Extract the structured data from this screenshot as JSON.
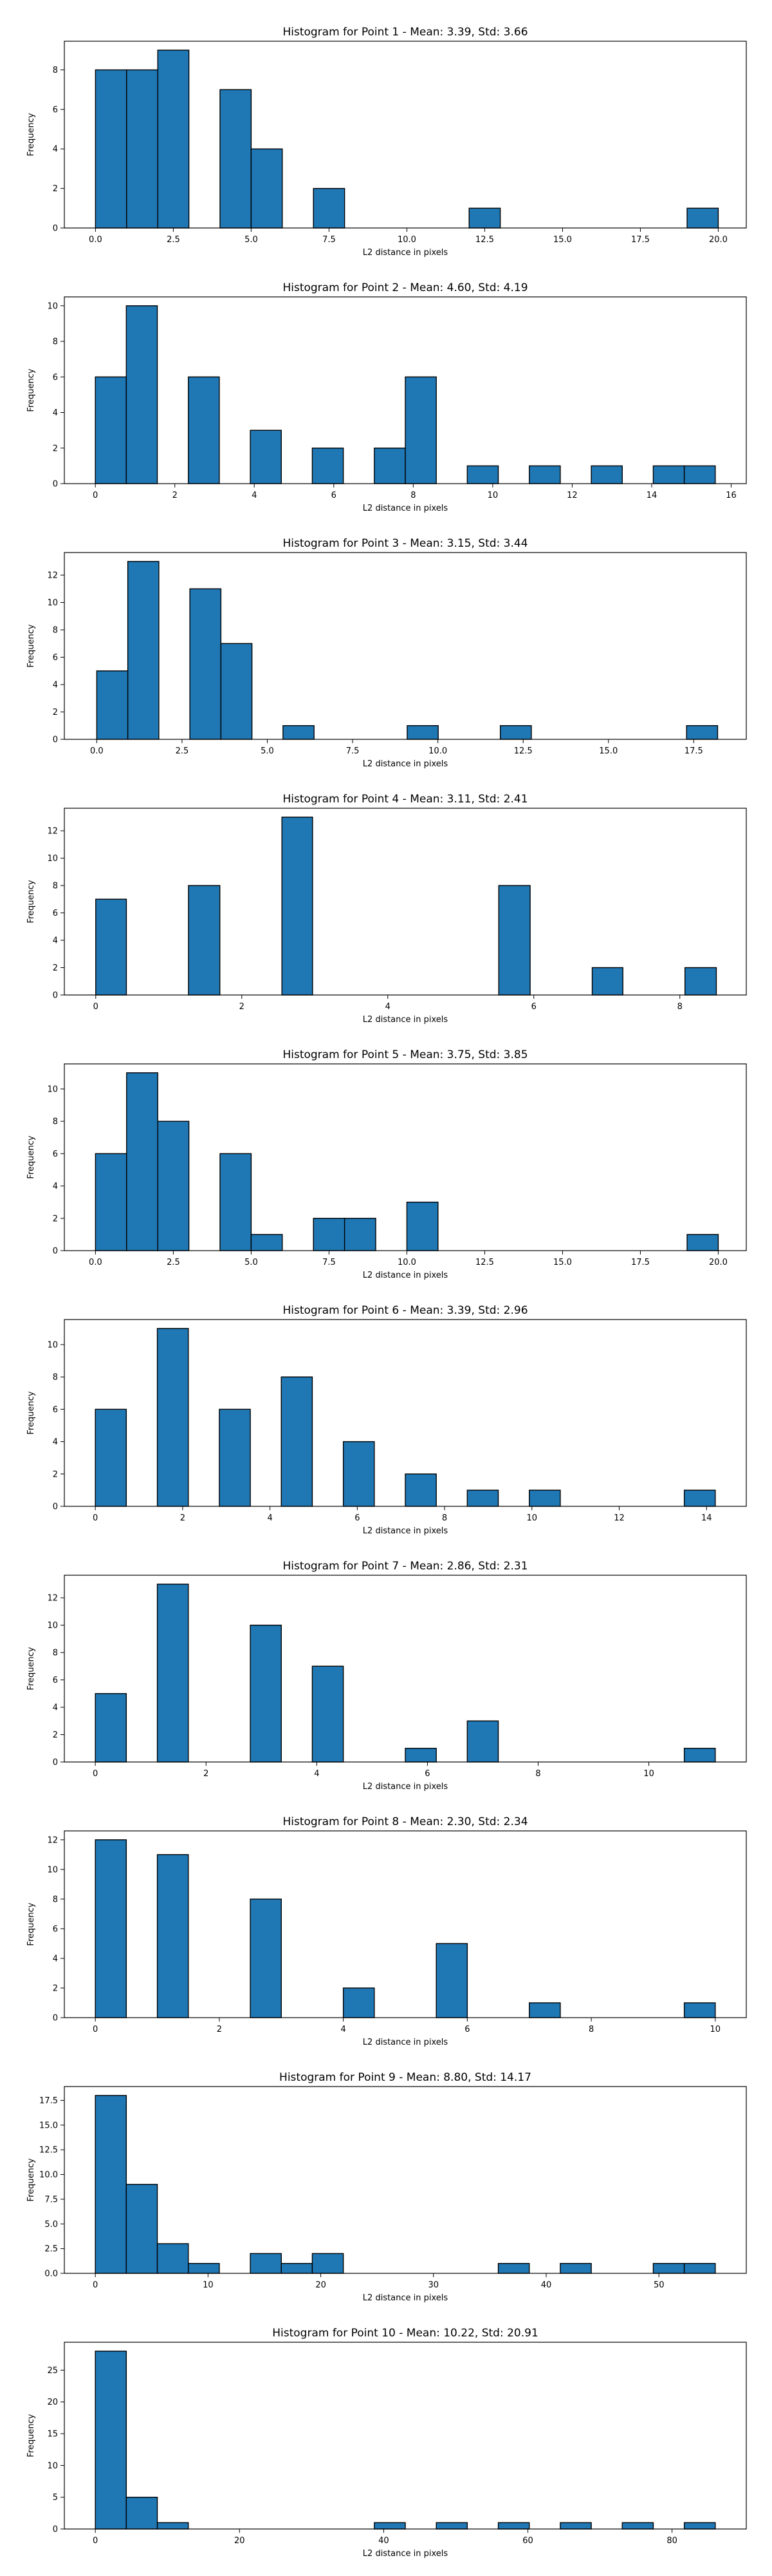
{
  "colors": {
    "bar_fill": "#1f77b4",
    "bar_edge": "#000000",
    "axis": "#000000",
    "background": "#ffffff"
  },
  "chart_data": [
    {
      "type": "bar",
      "title": "Histogram for Point 1 - Mean: 3.39, Std: 3.66",
      "xlabel": "L2 distance in pixels",
      "ylabel": "Frequency",
      "xlim": [
        -1.0,
        20.9
      ],
      "ylim": [
        0,
        9.45
      ],
      "xticks": [
        0,
        2.5,
        5,
        7.5,
        10,
        12.5,
        15,
        17.5,
        20
      ],
      "xtick_labels": [
        "0.0",
        "2.5",
        "5.0",
        "7.5",
        "10.0",
        "12.5",
        "15.0",
        "17.5",
        "20.0"
      ],
      "yticks": [
        0,
        2,
        4,
        6,
        8
      ],
      "ytick_labels": [
        "0",
        "2",
        "4",
        "6",
        "8"
      ],
      "grid": false,
      "bin_edges": [
        0,
        1,
        2,
        3,
        4,
        5,
        6,
        7,
        8,
        9,
        10,
        11,
        12,
        13,
        14,
        15,
        16,
        17,
        18,
        19,
        20
      ],
      "values": [
        8,
        8,
        9,
        0,
        7,
        4,
        0,
        2,
        0,
        0,
        0,
        0,
        1,
        0,
        0,
        0,
        0,
        0,
        0,
        1
      ]
    },
    {
      "type": "bar",
      "title": "Histogram for Point 2 - Mean: 4.60, Std: 4.19",
      "xlabel": "L2 distance in pixels",
      "ylabel": "Frequency",
      "xlim": [
        -0.78,
        16.38
      ],
      "ylim": [
        0,
        10.5
      ],
      "xticks": [
        0,
        2,
        4,
        6,
        8,
        10,
        12,
        14,
        16
      ],
      "xtick_labels": [
        "0",
        "2",
        "4",
        "6",
        "8",
        "10",
        "12",
        "14",
        "16"
      ],
      "yticks": [
        0,
        2,
        4,
        6,
        8,
        10
      ],
      "ytick_labels": [
        "0",
        "2",
        "4",
        "6",
        "8",
        "10"
      ],
      "grid": false,
      "bin_edges": [
        0,
        0.78,
        1.56,
        2.34,
        3.12,
        3.9,
        4.68,
        5.46,
        6.24,
        7.02,
        7.8,
        8.58,
        9.36,
        10.14,
        10.92,
        11.7,
        12.48,
        13.26,
        14.04,
        14.82,
        15.6
      ],
      "values": [
        6,
        10,
        0,
        6,
        0,
        3,
        0,
        2,
        0,
        2,
        6,
        0,
        1,
        0,
        1,
        0,
        1,
        0,
        1,
        1
      ]
    },
    {
      "type": "bar",
      "title": "Histogram for Point 3 - Mean: 3.15, Std: 3.44",
      "xlabel": "L2 distance in pixels",
      "ylabel": "Frequency",
      "xlim": [
        -0.95,
        19.04
      ],
      "ylim": [
        0,
        13.65
      ],
      "xticks": [
        0,
        2.5,
        5,
        7.5,
        10,
        12.5,
        15,
        17.5
      ],
      "xtick_labels": [
        "0.0",
        "2.5",
        "5.0",
        "7.5",
        "10.0",
        "12.5",
        "15.0",
        "17.5"
      ],
      "yticks": [
        0,
        2,
        4,
        6,
        8,
        10,
        12
      ],
      "ytick_labels": [
        "0",
        "2",
        "4",
        "6",
        "8",
        "10",
        "12"
      ],
      "grid": false,
      "bin_edges": [
        0,
        0.91,
        1.82,
        2.73,
        3.64,
        4.55,
        5.46,
        6.37,
        7.28,
        8.19,
        9.1,
        10.01,
        10.92,
        11.83,
        12.74,
        13.65,
        14.56,
        15.47,
        16.38,
        17.29,
        18.2
      ],
      "values": [
        5,
        13,
        0,
        11,
        7,
        0,
        1,
        0,
        0,
        0,
        1,
        0,
        0,
        1,
        0,
        0,
        0,
        0,
        0,
        1
      ]
    },
    {
      "type": "bar",
      "title": "Histogram for Point 4 - Mean: 3.11, Std: 2.41",
      "xlabel": "L2 distance in pixels",
      "ylabel": "Frequency",
      "xlim": [
        -0.43,
        8.91
      ],
      "ylim": [
        0,
        13.65
      ],
      "xticks": [
        0,
        2,
        4,
        6,
        8
      ],
      "xtick_labels": [
        "0",
        "2",
        "4",
        "6",
        "8"
      ],
      "yticks": [
        0,
        2,
        4,
        6,
        8,
        10,
        12
      ],
      "ytick_labels": [
        "0",
        "2",
        "4",
        "6",
        "8",
        "10",
        "12"
      ],
      "grid": false,
      "bin_edges": [
        0,
        0.42,
        0.85,
        1.27,
        1.7,
        2.12,
        2.55,
        2.97,
        3.4,
        3.82,
        4.25,
        4.67,
        5.1,
        5.52,
        5.95,
        6.37,
        6.8,
        7.22,
        7.65,
        8.07,
        8.5
      ],
      "values": [
        7,
        0,
        0,
        8,
        0,
        0,
        13,
        0,
        0,
        0,
        0,
        0,
        0,
        8,
        0,
        0,
        2,
        0,
        0,
        2
      ]
    },
    {
      "type": "bar",
      "title": "Histogram for Point 5 - Mean: 3.75, Std: 3.85",
      "xlabel": "L2 distance in pixels",
      "ylabel": "Frequency",
      "xlim": [
        -1.0,
        20.9
      ],
      "ylim": [
        0,
        11.55
      ],
      "xticks": [
        0,
        2.5,
        5,
        7.5,
        10,
        12.5,
        15,
        17.5,
        20
      ],
      "xtick_labels": [
        "0.0",
        "2.5",
        "5.0",
        "7.5",
        "10.0",
        "12.5",
        "15.0",
        "17.5",
        "20.0"
      ],
      "yticks": [
        0,
        2,
        4,
        6,
        8,
        10
      ],
      "ytick_labels": [
        "0",
        "2",
        "4",
        "6",
        "8",
        "10"
      ],
      "grid": false,
      "bin_edges": [
        0,
        1,
        2,
        3,
        4,
        5,
        6,
        7,
        8,
        9,
        10,
        11,
        12,
        13,
        14,
        15,
        16,
        17,
        18,
        19,
        20
      ],
      "values": [
        6,
        11,
        8,
        0,
        6,
        1,
        0,
        2,
        2,
        0,
        3,
        0,
        0,
        0,
        0,
        0,
        0,
        0,
        0,
        1
      ]
    },
    {
      "type": "bar",
      "title": "Histogram for Point 6 - Mean: 3.39, Std: 2.96",
      "xlabel": "L2 distance in pixels",
      "ylabel": "Frequency",
      "xlim": [
        -0.71,
        14.91
      ],
      "ylim": [
        0,
        11.55
      ],
      "xticks": [
        0,
        2,
        4,
        6,
        8,
        10,
        12,
        14
      ],
      "xtick_labels": [
        "0",
        "2",
        "4",
        "6",
        "8",
        "10",
        "12",
        "14"
      ],
      "yticks": [
        0,
        2,
        4,
        6,
        8,
        10
      ],
      "ytick_labels": [
        "0",
        "2",
        "4",
        "6",
        "8",
        "10"
      ],
      "grid": false,
      "bin_edges": [
        0,
        0.71,
        1.42,
        2.13,
        2.84,
        3.55,
        4.26,
        4.97,
        5.68,
        6.39,
        7.1,
        7.81,
        8.52,
        9.23,
        9.94,
        10.65,
        11.36,
        12.07,
        12.78,
        13.49,
        14.2
      ],
      "values": [
        6,
        0,
        11,
        0,
        6,
        0,
        8,
        0,
        4,
        0,
        2,
        0,
        1,
        0,
        1,
        0,
        0,
        0,
        0,
        1
      ]
    },
    {
      "type": "bar",
      "title": "Histogram for Point 7 - Mean: 2.86, Std: 2.31",
      "xlabel": "L2 distance in pixels",
      "ylabel": "Frequency",
      "xlim": [
        -0.56,
        11.76
      ],
      "ylim": [
        0,
        13.65
      ],
      "xticks": [
        0,
        2,
        4,
        6,
        8,
        10
      ],
      "xtick_labels": [
        "0",
        "2",
        "4",
        "6",
        "8",
        "10"
      ],
      "yticks": [
        0,
        2,
        4,
        6,
        8,
        10,
        12
      ],
      "ytick_labels": [
        "0",
        "2",
        "4",
        "6",
        "8",
        "10",
        "12"
      ],
      "grid": false,
      "bin_edges": [
        0,
        0.56,
        1.12,
        1.68,
        2.24,
        2.8,
        3.36,
        3.92,
        4.48,
        5.04,
        5.6,
        6.16,
        6.72,
        7.28,
        7.84,
        8.4,
        8.96,
        9.52,
        10.08,
        10.64,
        11.2
      ],
      "values": [
        5,
        0,
        13,
        0,
        0,
        10,
        0,
        7,
        0,
        0,
        1,
        0,
        3,
        0,
        0,
        0,
        0,
        0,
        0,
        1
      ]
    },
    {
      "type": "bar",
      "title": "Histogram for Point 8 - Mean: 2.30, Std: 2.34",
      "xlabel": "L2 distance in pixels",
      "ylabel": "Frequency",
      "xlim": [
        -0.5,
        10.5
      ],
      "ylim": [
        0,
        12.6
      ],
      "xticks": [
        0,
        2,
        4,
        6,
        8,
        10
      ],
      "xtick_labels": [
        "0",
        "2",
        "4",
        "6",
        "8",
        "10"
      ],
      "yticks": [
        0,
        2,
        4,
        6,
        8,
        10,
        12
      ],
      "ytick_labels": [
        "0",
        "2",
        "4",
        "6",
        "8",
        "10",
        "12"
      ],
      "grid": false,
      "bin_edges": [
        0,
        0.5,
        1,
        1.5,
        2,
        2.5,
        3,
        3.5,
        4,
        4.5,
        5,
        5.5,
        6,
        6.5,
        7,
        7.5,
        8,
        8.5,
        9,
        9.5,
        10
      ],
      "values": [
        12,
        0,
        11,
        0,
        0,
        8,
        0,
        0,
        2,
        0,
        0,
        5,
        0,
        0,
        1,
        0,
        0,
        0,
        0,
        1
      ]
    },
    {
      "type": "bar",
      "title": "Histogram for Point 9 - Mean: 8.80, Std: 14.17",
      "xlabel": "L2 distance in pixels",
      "ylabel": "Frequency",
      "xlim": [
        -2.75,
        57.75
      ],
      "ylim": [
        0,
        18.9
      ],
      "xticks": [
        0,
        10,
        20,
        30,
        40,
        50
      ],
      "xtick_labels": [
        "0",
        "10",
        "20",
        "30",
        "40",
        "50"
      ],
      "yticks": [
        0,
        2.5,
        5,
        7.5,
        10,
        12.5,
        15,
        17.5
      ],
      "ytick_labels": [
        "0.0",
        "2.5",
        "5.0",
        "7.5",
        "10.0",
        "12.5",
        "15.0",
        "17.5"
      ],
      "grid": false,
      "bin_edges": [
        0,
        2.75,
        5.5,
        8.25,
        11,
        13.75,
        16.5,
        19.25,
        22,
        24.75,
        27.5,
        30.25,
        33,
        35.75,
        38.5,
        41.25,
        44,
        46.75,
        49.5,
        52.25,
        55
      ],
      "values": [
        18,
        9,
        3,
        1,
        0,
        2,
        1,
        2,
        0,
        0,
        0,
        0,
        0,
        1,
        0,
        1,
        0,
        0,
        1,
        1
      ]
    },
    {
      "type": "bar",
      "title": "Histogram for Point 10 - Mean: 10.22, Std: 20.91",
      "xlabel": "L2 distance in pixels",
      "ylabel": "Frequency",
      "xlim": [
        -4.3,
        90.3
      ],
      "ylim": [
        0,
        29.4
      ],
      "xticks": [
        0,
        20,
        40,
        60,
        80
      ],
      "xtick_labels": [
        "0",
        "20",
        "40",
        "60",
        "80"
      ],
      "yticks": [
        0,
        5,
        10,
        15,
        20,
        25
      ],
      "ytick_labels": [
        "0",
        "5",
        "10",
        "15",
        "20",
        "25"
      ],
      "grid": false,
      "bin_edges": [
        0,
        4.3,
        8.6,
        12.9,
        17.2,
        21.5,
        25.8,
        30.1,
        34.4,
        38.7,
        43,
        47.3,
        51.6,
        55.9,
        60.2,
        64.5,
        68.8,
        73.1,
        77.4,
        81.7,
        86
      ],
      "values": [
        28,
        5,
        1,
        0,
        0,
        0,
        0,
        0,
        0,
        1,
        0,
        1,
        0,
        1,
        0,
        1,
        0,
        1,
        0,
        1
      ]
    }
  ]
}
